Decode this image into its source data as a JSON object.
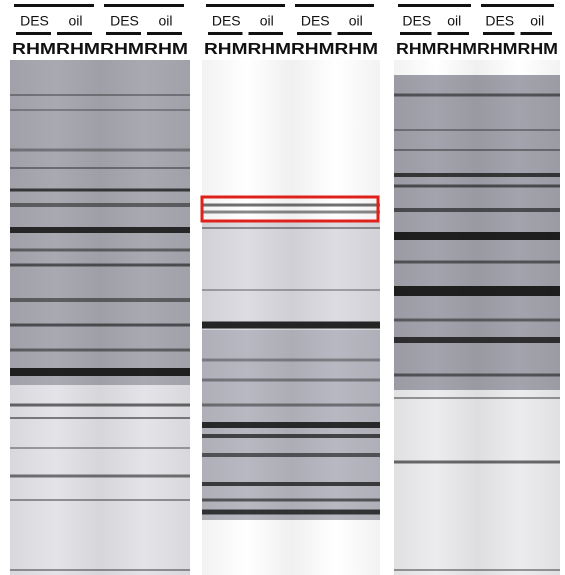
{
  "panels": [
    {
      "groups": [
        {
          "labels": [
            "DES",
            "oil"
          ]
        },
        {
          "labels": [
            "DES",
            "oil"
          ]
        }
      ],
      "lanes": "RHMRHMRHMRHM"
    },
    {
      "groups": [
        {
          "labels": [
            "DES",
            "oil"
          ]
        },
        {
          "labels": [
            "DES",
            "oil"
          ]
        }
      ],
      "lanes": "RHMRHMRHMRHM"
    },
    {
      "groups": [
        {
          "labels": [
            "DES",
            "oil"
          ]
        },
        {
          "labels": [
            "DES",
            "oil"
          ]
        }
      ],
      "lanes": "RHMRHMRHMRHM"
    }
  ]
}
